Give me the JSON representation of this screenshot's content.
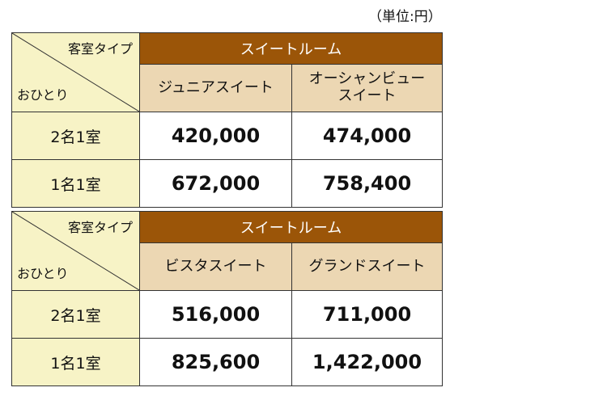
{
  "unit": "（単位:円）",
  "tables": [
    {
      "corner_top": "客室タイプ",
      "corner_bottom": "おひとり",
      "group_header": "スイートルーム",
      "room_types": [
        "ジュニアスイート",
        "オーシャンビュー\nスイート"
      ],
      "rows": [
        {
          "label": "2名1室",
          "values": [
            "420,000",
            "474,000"
          ]
        },
        {
          "label": "1名1室",
          "values": [
            "672,000",
            "758,400"
          ]
        }
      ]
    },
    {
      "corner_top": "客室タイプ",
      "corner_bottom": "おひとり",
      "group_header": "スイートルーム",
      "room_types": [
        "ビスタスイート",
        "グランドスイート"
      ],
      "rows": [
        {
          "label": "2名1室",
          "values": [
            "516,000",
            "711,000"
          ]
        },
        {
          "label": "1名1室",
          "values": [
            "825,600",
            "1,422,000"
          ]
        }
      ]
    }
  ]
}
